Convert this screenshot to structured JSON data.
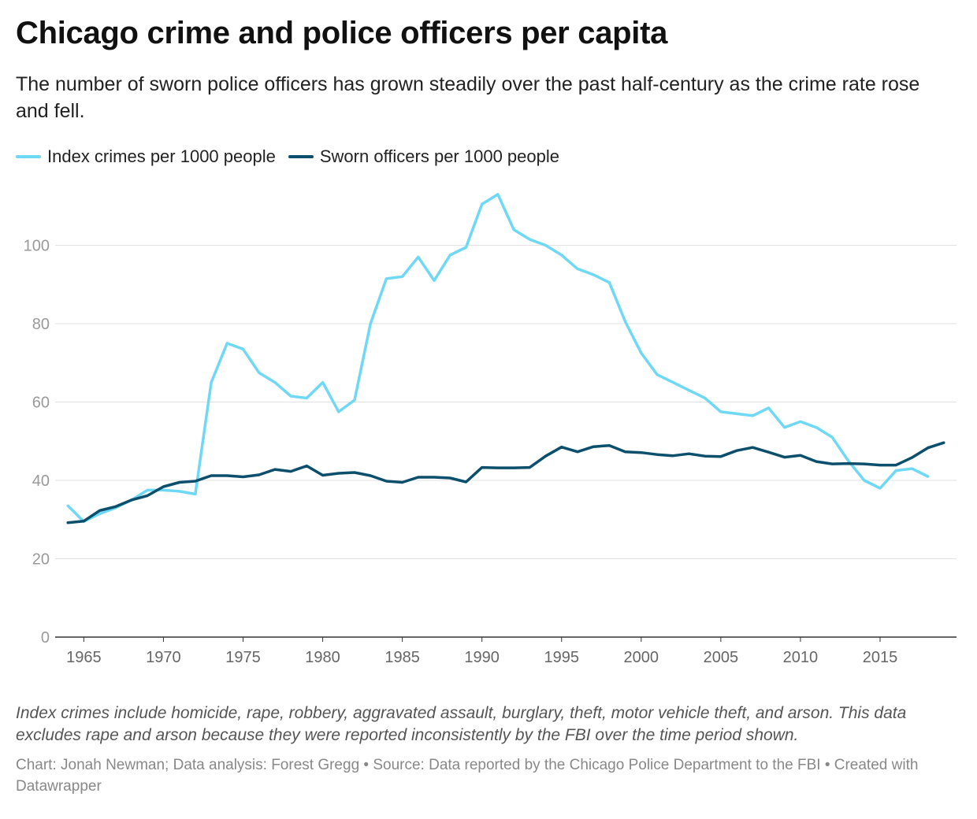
{
  "chart_data": {
    "type": "line",
    "title": "Chicago crime and police officers per capita",
    "subtitle": "The number of sworn police officers has grown steadily over the past half-century as the crime rate rose and fell.",
    "x": [
      1964,
      1965,
      1966,
      1967,
      1968,
      1969,
      1970,
      1971,
      1972,
      1973,
      1974,
      1975,
      1976,
      1977,
      1978,
      1979,
      1980,
      1981,
      1982,
      1983,
      1984,
      1985,
      1986,
      1987,
      1988,
      1989,
      1990,
      1991,
      1992,
      1993,
      1994,
      1995,
      1996,
      1997,
      1998,
      1999,
      2000,
      2001,
      2002,
      2003,
      2004,
      2005,
      2006,
      2007,
      2008,
      2009,
      2010,
      2011,
      2012,
      2013,
      2014,
      2015,
      2016,
      2017,
      2018,
      2019
    ],
    "series": [
      {
        "name": "Index crimes per 1000 people",
        "color": "#6ED8F5",
        "values": [
          33.5,
          29.5,
          31.5,
          33.0,
          35.0,
          37.5,
          37.5,
          37.2,
          36.5,
          65.0,
          75.0,
          73.5,
          67.5,
          65.0,
          61.5,
          61.0,
          65.0,
          57.5,
          60.5,
          80.0,
          91.5,
          92.0,
          97.0,
          91.0,
          97.5,
          99.5,
          110.5,
          113.0,
          104.0,
          101.5,
          100.0,
          97.5,
          94.0,
          92.5,
          90.5,
          80.5,
          72.5,
          67.0,
          65.0,
          63.0,
          61.0,
          57.5,
          57.0,
          56.5,
          58.5,
          53.5,
          55.0,
          53.5,
          51.0,
          45.0,
          40.0,
          38.0,
          42.5,
          43.0,
          41.0,
          null
        ]
      },
      {
        "name": "Sworn officers per 1000 people",
        "color": "#0B4F6C",
        "values": [
          29.2,
          29.6,
          32.3,
          33.3,
          35.0,
          36.1,
          38.4,
          39.5,
          39.8,
          41.2,
          41.2,
          40.9,
          41.4,
          42.8,
          42.3,
          43.7,
          41.3,
          41.8,
          42.0,
          41.2,
          39.8,
          39.5,
          40.8,
          40.8,
          40.6,
          39.6,
          43.3,
          43.2,
          43.2,
          43.3,
          46.2,
          48.5,
          47.3,
          48.6,
          48.9,
          47.3,
          47.1,
          46.6,
          46.3,
          46.8,
          46.2,
          46.1,
          47.6,
          48.4,
          47.2,
          45.9,
          46.4,
          44.8,
          44.2,
          44.3,
          44.2,
          43.9,
          43.9,
          45.8,
          48.3,
          49.6
        ]
      }
    ],
    "xticks": [
      1965,
      1970,
      1975,
      1980,
      1985,
      1990,
      1995,
      2000,
      2005,
      2010,
      2015
    ],
    "yticks": [
      0,
      20,
      40,
      60,
      80,
      100
    ],
    "ylim": [
      0,
      120
    ],
    "xlim": [
      1963.2,
      2019.8
    ],
    "grid": true,
    "legend": "top-left"
  },
  "notes": "Index crimes include homicide, rape, robbery, aggravated assault, burglary, theft, motor vehicle theft, and arson. This data excludes rape and arson because they were reported inconsistently by the FBI over the time period shown.",
  "credits": "Chart: Jonah Newman; Data analysis: Forest Gregg • Source: Data reported by the Chicago Police Department to the FBI • Created with Datawrapper"
}
